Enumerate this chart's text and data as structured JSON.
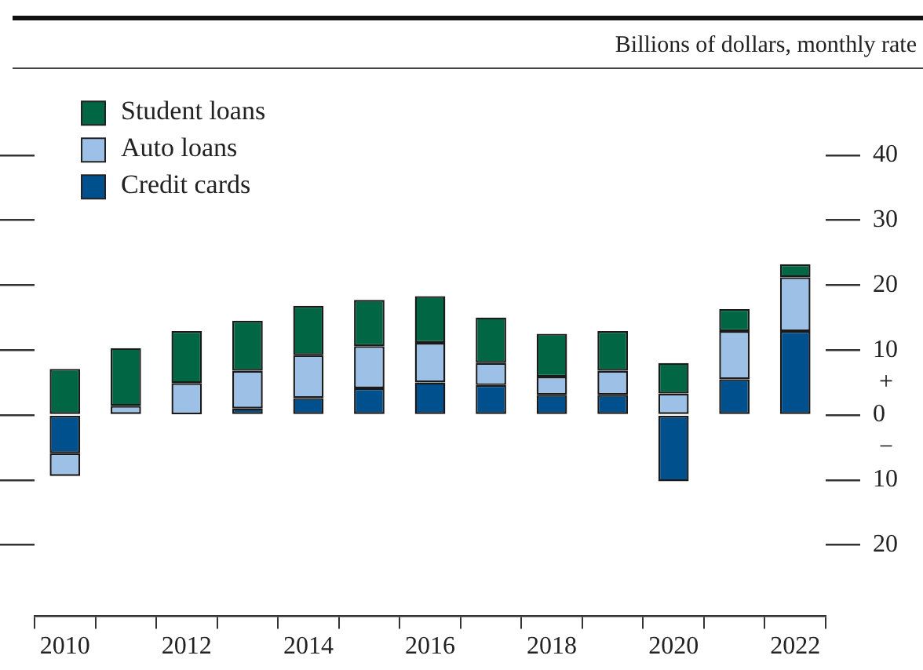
{
  "chart_data": {
    "type": "bar",
    "stacked": true,
    "ylabel": "Billions of dollars, monthly rate",
    "categories": [
      "2010",
      null,
      "2012",
      null,
      "2014",
      null,
      "2016",
      null,
      "2018",
      null,
      "2020",
      null,
      "2022"
    ],
    "series": [
      {
        "name": "Credit cards",
        "color": "#00508e",
        "values": [
          -5.9,
          0,
          0.1,
          1.0,
          2.6,
          4.1,
          5.0,
          4.6,
          3.1,
          3.1,
          -10.2,
          5.5,
          12.9
        ]
      },
      {
        "name": "Auto loans",
        "color": "#9dc0e6",
        "values": [
          -3.5,
          1.4,
          4.8,
          5.8,
          6.6,
          6.5,
          6.1,
          3.4,
          2.8,
          3.7,
          3.3,
          7.4,
          8.3
        ]
      },
      {
        "name": "Student loans",
        "color": "#006644",
        "values": [
          7.1,
          8.9,
          8.0,
          7.7,
          7.6,
          7.1,
          7.2,
          7.0,
          6.6,
          6.1,
          4.7,
          3.4,
          2.0
        ]
      }
    ],
    "ylim": [
      -31,
      49
    ],
    "yticks": [
      {
        "value": -20,
        "label": "20"
      },
      {
        "value": -10,
        "label": "10"
      },
      0,
      10,
      20,
      30,
      40
    ],
    "legend": "top left",
    "annotations": [
      "+",
      "−"
    ]
  }
}
